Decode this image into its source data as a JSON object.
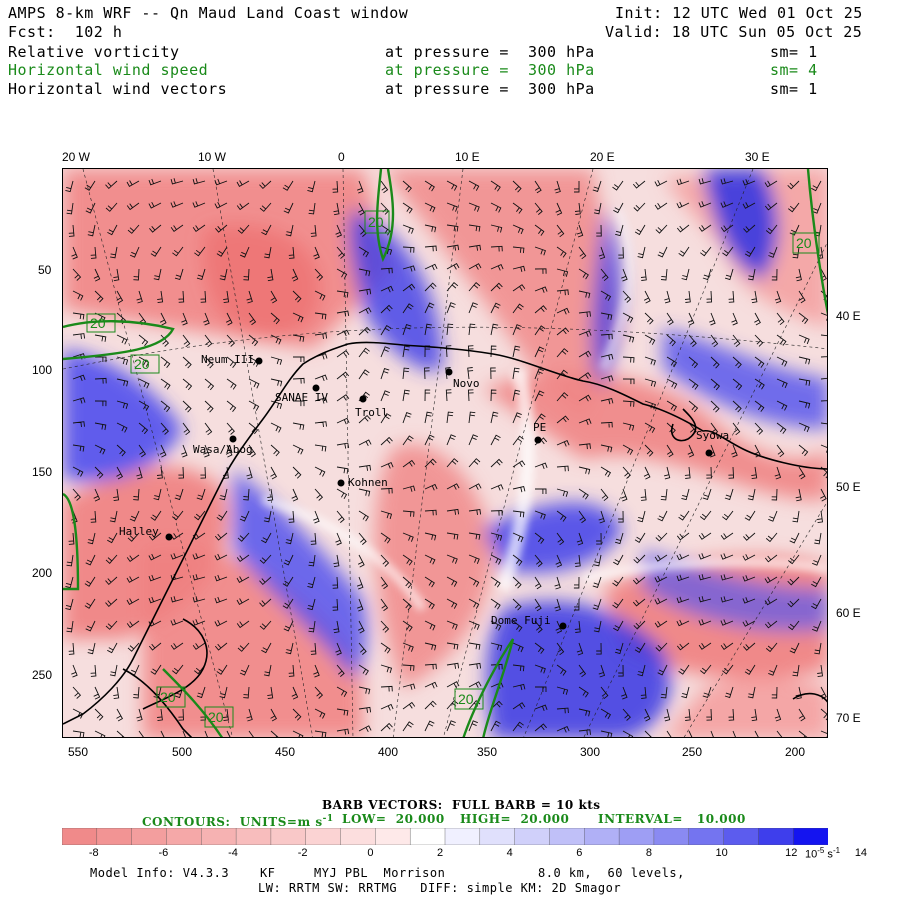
{
  "header": {
    "title": "AMPS 8-km WRF -- Qn Maud Land Coast window",
    "init": "Init: 12 UTC Wed 01 Oct 25",
    "fcst": "Fcst:  102 h",
    "valid": "Valid: 18 UTC Sun 05 Oct 25",
    "fields": [
      {
        "name": "Relative vorticity",
        "level": "at pressure =  300 hPa",
        "sm": "sm= 1",
        "color": "#000000"
      },
      {
        "name": "Horizontal wind speed",
        "level": "at pressure =  300 hPa",
        "sm": "sm= 4",
        "color": "#1a8a1a"
      },
      {
        "name": "Horizontal wind vectors",
        "level": "at pressure =  300 hPa",
        "sm": "sm= 1",
        "color": "#000000"
      }
    ]
  },
  "map": {
    "top_labels": [
      "20 W",
      "10 W",
      "0",
      "10 E",
      "20 E",
      "30 E"
    ],
    "left_labels": [
      "50",
      "100",
      "150",
      "200",
      "250"
    ],
    "right_labels": [
      "40 E",
      "50 E",
      "60 E",
      "70 E"
    ],
    "bottom_labels": [
      "550",
      "500",
      "450",
      "400",
      "350",
      "300",
      "250",
      "200"
    ],
    "stations": [
      "Neum III",
      "SANAE IV",
      "Troll",
      "Novo",
      "PE",
      "Syowa",
      "Wasa/Abog",
      "Kohnen",
      "Halley",
      "Dome Fuji"
    ],
    "contour_labels": [
      "20",
      "20",
      "20",
      "20",
      "20",
      "20",
      "20",
      "20"
    ]
  },
  "footer": {
    "barb": "BARB VECTORS:  FULL BARB = 10 kts",
    "contours_label": "CONTOURS:  UNITS=m s",
    "contours_sup": "-1",
    "low": "LOW=  20.000",
    "high": "HIGH=  20.000",
    "interval": "INTERVAL=   10.000",
    "colorbar_ticks": [
      "-8",
      "-6",
      "-4",
      "-2",
      "0",
      "2",
      "4",
      "6",
      "8",
      "10",
      "12",
      "14"
    ],
    "colorbar_unit": "10",
    "colorbar_unit_exp": "-5",
    "colorbar_unit_tail": " s",
    "colorbar_unit_tail_exp": "-1",
    "model_line1": "Model Info: V4.3.3    KF     MYJ PBL  Morrison            8.0 km,  60 levels,",
    "model_line2": "LW: RRTM SW: RRTMG   DIFF: simple KM: 2D Smagor"
  },
  "colors": {
    "neg": "#f08080",
    "pos": "#3a3aee",
    "contour": "#1a8a1a"
  }
}
